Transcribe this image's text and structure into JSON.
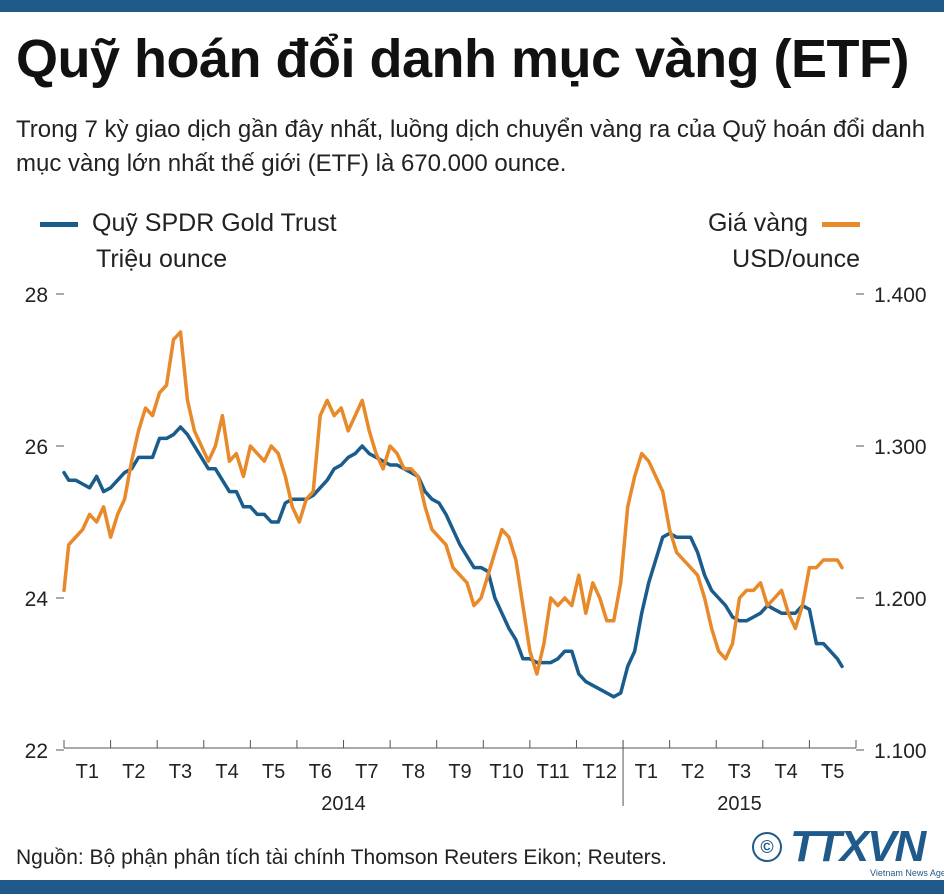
{
  "header": {
    "title": "Quỹ hoán đổi danh mục vàng (ETF)",
    "subtitle": "Trong 7 kỳ giao dịch gần đây nhất, luồng dịch chuyển vàng ra của Quỹ hoán đổi danh mục vàng lớn nhất thế giới (ETF) là 670.000 ounce."
  },
  "legend": {
    "left_series": "Quỹ SPDR Gold Trust",
    "left_unit": "Triệu ounce",
    "right_series": "Giá vàng",
    "right_unit": "USD/ounce"
  },
  "footer": {
    "source": "Nguồn: Bộ phận phân tích tài chính Thomson Reuters Eikon; Reuters.",
    "logo_symbol": "©",
    "logo_text": "TTXVN",
    "logo_sub": "Vietnam News Agency"
  },
  "colors": {
    "etf": "#1a5c8c",
    "gold": "#e8892a",
    "bar": "#1f5a8a"
  },
  "chart_data": {
    "type": "line",
    "categories": [
      "T1",
      "T2",
      "T3",
      "T4",
      "T5",
      "T6",
      "T7",
      "T8",
      "T9",
      "T10",
      "T11",
      "T12",
      "T1",
      "T2",
      "T3",
      "T4",
      "T5"
    ],
    "years": [
      {
        "label": "2014",
        "from": 0,
        "to": 11
      },
      {
        "label": "2015",
        "from": 12,
        "to": 16
      }
    ],
    "y_left": {
      "label": "Triệu ounce",
      "ticks": [
        "22",
        "24",
        "26",
        "28"
      ],
      "range": [
        22,
        28
      ]
    },
    "y_right": {
      "label": "USD/ounce",
      "ticks": [
        "1.100",
        "1.200",
        "1.300",
        "1.400"
      ],
      "range": [
        1100,
        1400
      ]
    },
    "series": [
      {
        "name": "Quỹ SPDR Gold Trust",
        "axis": "left",
        "x": [
          0.0,
          0.1,
          0.25,
          0.4,
          0.55,
          0.7,
          0.85,
          1.0,
          1.15,
          1.3,
          1.45,
          1.6,
          1.75,
          1.9,
          2.05,
          2.2,
          2.35,
          2.5,
          2.65,
          2.8,
          2.95,
          3.1,
          3.25,
          3.4,
          3.55,
          3.7,
          3.85,
          4.0,
          4.15,
          4.3,
          4.45,
          4.6,
          4.75,
          4.9,
          5.05,
          5.2,
          5.35,
          5.5,
          5.65,
          5.8,
          5.95,
          6.1,
          6.25,
          6.4,
          6.55,
          6.7,
          6.85,
          7.0,
          7.15,
          7.3,
          7.45,
          7.6,
          7.75,
          7.9,
          8.05,
          8.2,
          8.35,
          8.5,
          8.65,
          8.8,
          8.95,
          9.1,
          9.25,
          9.4,
          9.55,
          9.7,
          9.85,
          10.0,
          10.15,
          10.3,
          10.45,
          10.6,
          10.75,
          10.9,
          11.05,
          11.2,
          11.35,
          11.5,
          11.65,
          11.8,
          11.95,
          12.1,
          12.25,
          12.4,
          12.55,
          12.7,
          12.85,
          13.0,
          13.15,
          13.3,
          13.45,
          13.6,
          13.75,
          13.9,
          14.05,
          14.2,
          14.35,
          14.5,
          14.65,
          14.8,
          14.95,
          15.1,
          15.25,
          15.4,
          15.55,
          15.7,
          15.85,
          16.0,
          16.15,
          16.3,
          16.45,
          16.6,
          16.7
        ],
        "values": [
          25.65,
          25.55,
          25.55,
          25.5,
          25.45,
          25.6,
          25.4,
          25.45,
          25.55,
          25.65,
          25.7,
          25.85,
          25.85,
          25.85,
          26.1,
          26.1,
          26.15,
          26.25,
          26.15,
          26.0,
          25.85,
          25.7,
          25.7,
          25.55,
          25.4,
          25.4,
          25.2,
          25.2,
          25.1,
          25.1,
          25.0,
          25.0,
          25.25,
          25.3,
          25.3,
          25.3,
          25.35,
          25.45,
          25.55,
          25.7,
          25.75,
          25.85,
          25.9,
          26.0,
          25.9,
          25.85,
          25.8,
          25.75,
          25.75,
          25.7,
          25.65,
          25.6,
          25.4,
          25.3,
          25.25,
          25.1,
          24.9,
          24.7,
          24.55,
          24.4,
          24.4,
          24.35,
          24.0,
          23.8,
          23.6,
          23.45,
          23.2,
          23.2,
          23.15,
          23.15,
          23.15,
          23.2,
          23.3,
          23.3,
          23.0,
          22.9,
          22.85,
          22.8,
          22.75,
          22.7,
          22.75,
          23.1,
          23.3,
          23.8,
          24.2,
          24.5,
          24.8,
          24.85,
          24.8,
          24.8,
          24.8,
          24.6,
          24.3,
          24.1,
          24.0,
          23.9,
          23.75,
          23.7,
          23.7,
          23.75,
          23.8,
          23.9,
          23.85,
          23.8,
          23.8,
          23.8,
          23.9,
          23.85,
          23.4,
          23.4,
          23.3,
          23.2,
          23.1
        ]
      },
      {
        "name": "Giá vàng",
        "axis": "right",
        "x": [
          0.0,
          0.1,
          0.25,
          0.4,
          0.55,
          0.7,
          0.85,
          1.0,
          1.15,
          1.3,
          1.45,
          1.6,
          1.75,
          1.9,
          2.05,
          2.2,
          2.35,
          2.5,
          2.65,
          2.8,
          2.95,
          3.1,
          3.25,
          3.4,
          3.55,
          3.7,
          3.85,
          4.0,
          4.15,
          4.3,
          4.45,
          4.6,
          4.75,
          4.9,
          5.05,
          5.2,
          5.35,
          5.5,
          5.65,
          5.8,
          5.95,
          6.1,
          6.25,
          6.4,
          6.55,
          6.7,
          6.85,
          7.0,
          7.15,
          7.3,
          7.45,
          7.6,
          7.75,
          7.9,
          8.05,
          8.2,
          8.35,
          8.5,
          8.65,
          8.8,
          8.95,
          9.1,
          9.25,
          9.4,
          9.55,
          9.7,
          9.85,
          10.0,
          10.15,
          10.3,
          10.45,
          10.6,
          10.75,
          10.9,
          11.05,
          11.2,
          11.35,
          11.5,
          11.65,
          11.8,
          11.95,
          12.1,
          12.25,
          12.4,
          12.55,
          12.7,
          12.85,
          13.0,
          13.15,
          13.3,
          13.45,
          13.6,
          13.75,
          13.9,
          14.05,
          14.2,
          14.35,
          14.5,
          14.65,
          14.8,
          14.95,
          15.1,
          15.25,
          15.4,
          15.55,
          15.7,
          15.85,
          16.0,
          16.15,
          16.3,
          16.45,
          16.6,
          16.7
        ],
        "values": [
          1205,
          1235,
          1240,
          1245,
          1255,
          1250,
          1260,
          1240,
          1255,
          1265,
          1290,
          1310,
          1325,
          1320,
          1335,
          1340,
          1370,
          1375,
          1330,
          1310,
          1300,
          1290,
          1300,
          1320,
          1290,
          1295,
          1280,
          1300,
          1295,
          1290,
          1300,
          1295,
          1280,
          1260,
          1250,
          1265,
          1270,
          1320,
          1330,
          1320,
          1325,
          1310,
          1320,
          1330,
          1310,
          1295,
          1285,
          1300,
          1295,
          1285,
          1285,
          1280,
          1260,
          1245,
          1240,
          1235,
          1220,
          1215,
          1210,
          1195,
          1200,
          1215,
          1230,
          1245,
          1240,
          1225,
          1195,
          1165,
          1150,
          1170,
          1200,
          1195,
          1200,
          1195,
          1215,
          1190,
          1210,
          1200,
          1185,
          1185,
          1210,
          1260,
          1280,
          1295,
          1290,
          1280,
          1270,
          1245,
          1230,
          1225,
          1220,
          1215,
          1200,
          1180,
          1165,
          1160,
          1170,
          1200,
          1205,
          1205,
          1210,
          1195,
          1200,
          1205,
          1190,
          1180,
          1195,
          1220,
          1220,
          1225,
          1225,
          1225,
          1220
        ]
      }
    ],
    "grid": false,
    "legend": "top"
  }
}
